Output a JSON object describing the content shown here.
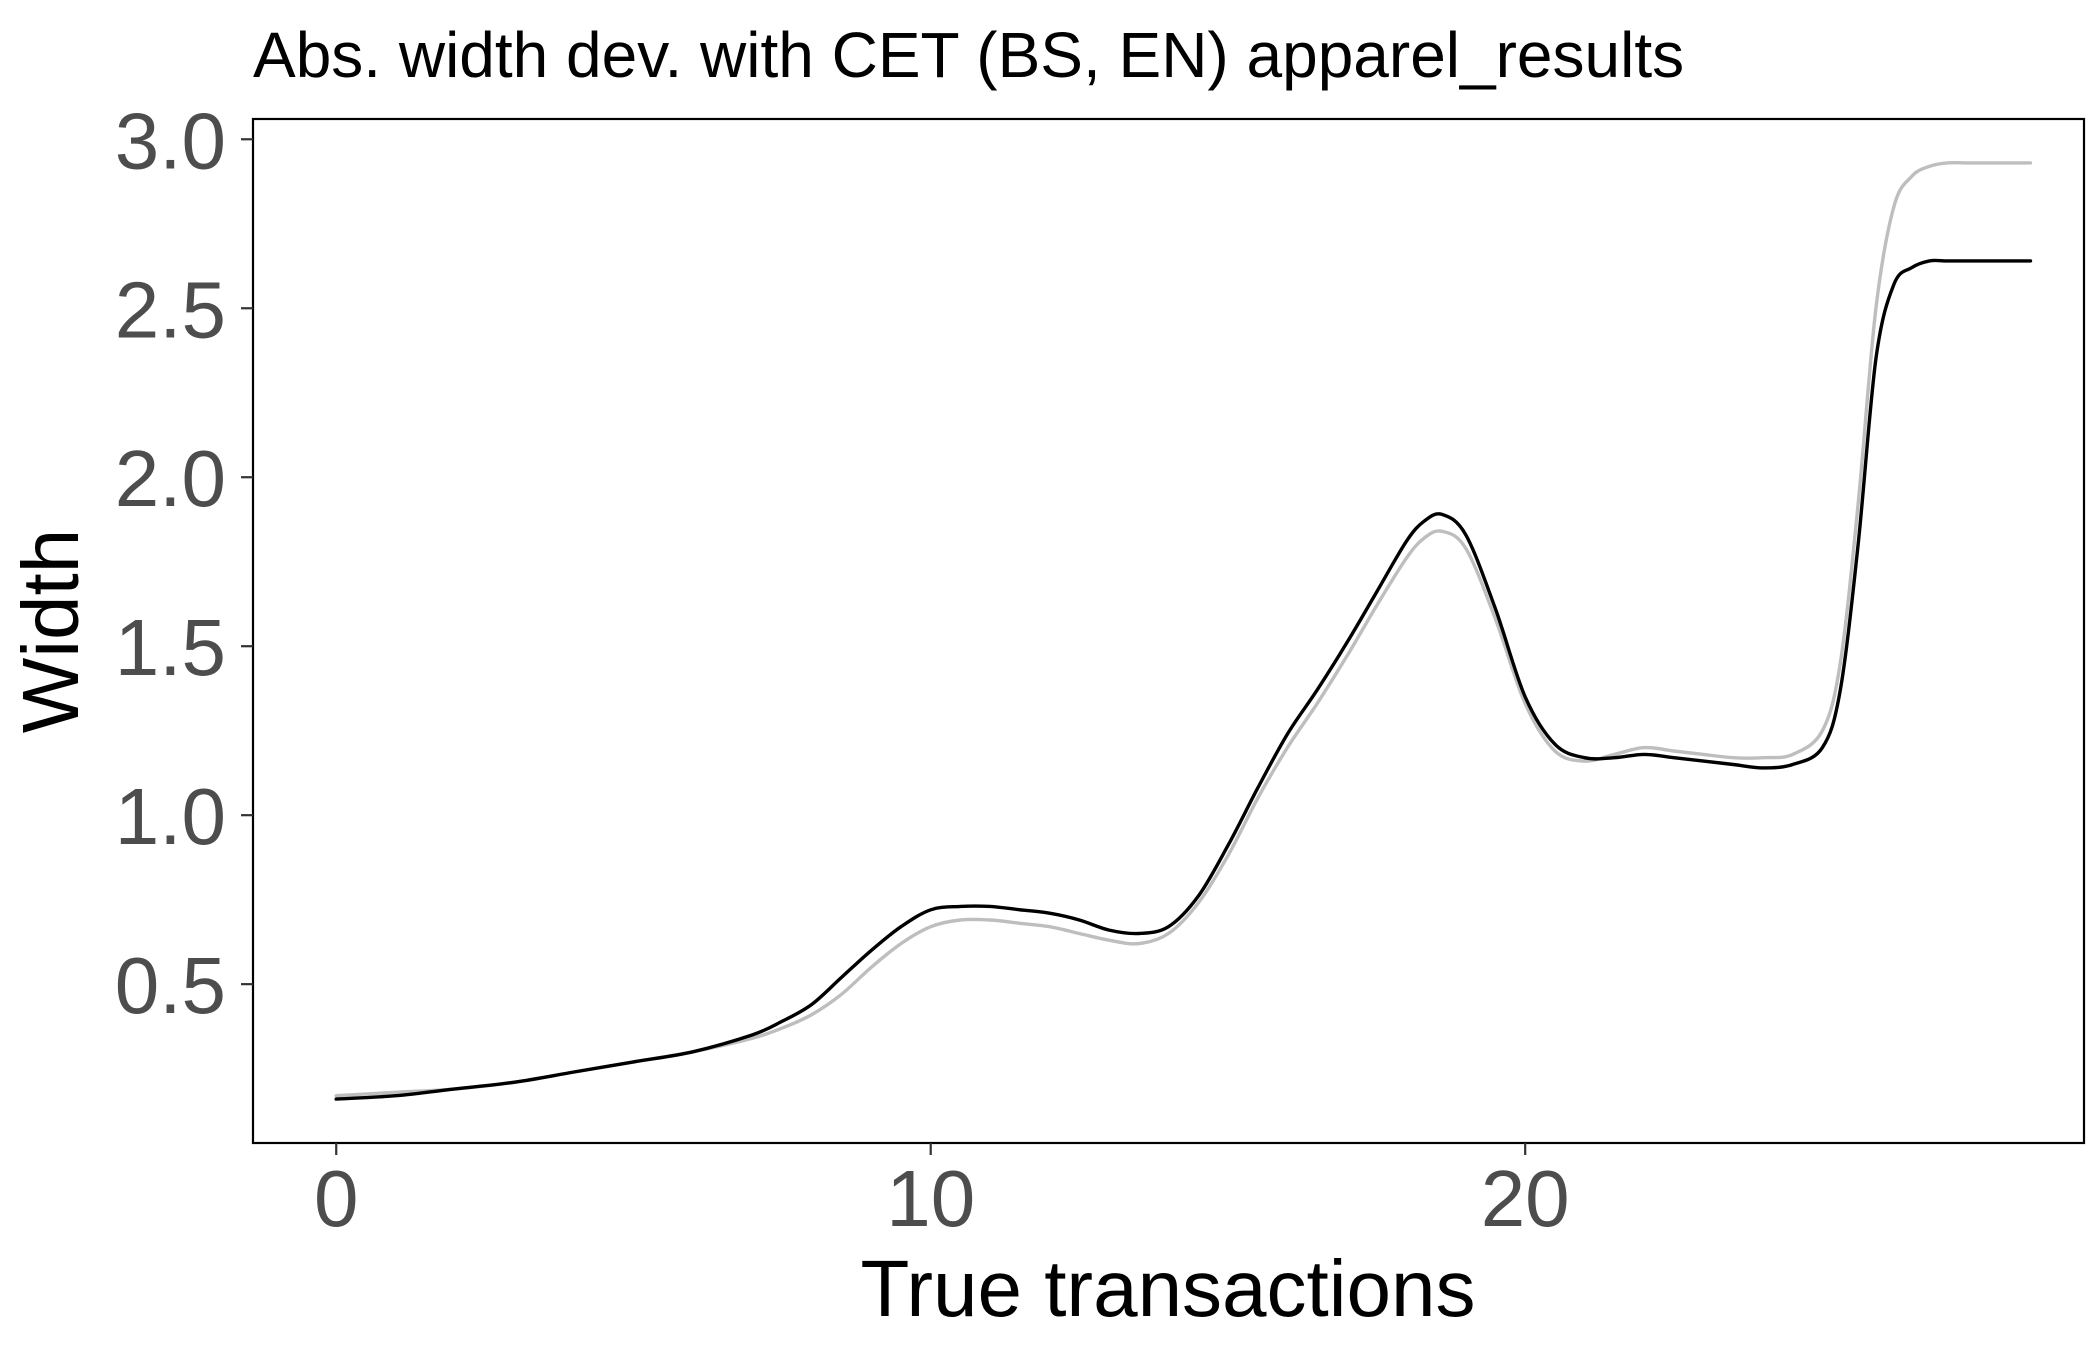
{
  "chart_data": {
    "type": "line",
    "title": "Abs. width dev. with CET (BS, EN) apparel_results",
    "xlabel": "True transactions",
    "ylabel": "Width",
    "xlim": [
      -1.4,
      29.4
    ],
    "ylim": [
      0.03,
      3.06
    ],
    "x_ticks": [
      0,
      10,
      20
    ],
    "x_tick_labels": [
      "0",
      "10",
      "20"
    ],
    "y_ticks": [
      0.5,
      1.0,
      1.5,
      2.0,
      2.5,
      3.0
    ],
    "y_tick_labels": [
      "0.5",
      "1.0",
      "1.5",
      "2.0",
      "2.5",
      "3.0"
    ],
    "grid": false,
    "legend": "none",
    "series": [
      {
        "color": "#bebebe",
        "x": [
          0,
          1,
          2,
          3,
          4,
          5,
          6,
          7,
          7.5,
          8,
          8.5,
          9,
          9.5,
          10,
          10.5,
          11,
          11.5,
          12,
          12.5,
          13,
          13.5,
          14,
          14.5,
          15,
          15.5,
          16,
          16.5,
          17,
          17.5,
          18,
          18.3,
          18.6,
          19,
          19.5,
          20,
          20.5,
          21,
          21.5,
          22,
          22.5,
          23,
          23.5,
          24,
          24.5,
          25,
          25.3,
          25.6,
          25.9,
          26.2,
          26.5,
          26.8,
          27.1,
          27.5,
          28,
          28.5
        ],
        "y": [
          0.17,
          0.18,
          0.19,
          0.21,
          0.24,
          0.27,
          0.3,
          0.34,
          0.37,
          0.41,
          0.47,
          0.55,
          0.62,
          0.67,
          0.69,
          0.69,
          0.68,
          0.67,
          0.65,
          0.63,
          0.62,
          0.65,
          0.74,
          0.88,
          1.05,
          1.2,
          1.33,
          1.47,
          1.62,
          1.76,
          1.82,
          1.84,
          1.79,
          1.58,
          1.33,
          1.19,
          1.16,
          1.18,
          1.2,
          1.19,
          1.18,
          1.17,
          1.17,
          1.18,
          1.25,
          1.45,
          1.92,
          2.5,
          2.8,
          2.89,
          2.92,
          2.93,
          2.93,
          2.93,
          2.93
        ]
      },
      {
        "color": "#000000",
        "x": [
          0,
          1,
          2,
          3,
          4,
          5,
          6,
          7,
          7.5,
          8,
          8.5,
          9,
          9.5,
          10,
          10.5,
          11,
          11.5,
          12,
          12.5,
          13,
          13.5,
          14,
          14.5,
          15,
          15.5,
          16,
          16.5,
          17,
          17.5,
          18,
          18.3,
          18.6,
          19,
          19.5,
          20,
          20.5,
          21,
          21.5,
          22,
          22.5,
          23,
          23.5,
          24,
          24.5,
          25,
          25.3,
          25.6,
          25.9,
          26.2,
          26.5,
          26.8,
          27.1,
          27.5,
          28,
          28.5
        ],
        "y": [
          0.16,
          0.17,
          0.19,
          0.21,
          0.24,
          0.27,
          0.3,
          0.35,
          0.39,
          0.44,
          0.52,
          0.6,
          0.67,
          0.72,
          0.73,
          0.73,
          0.72,
          0.71,
          0.69,
          0.66,
          0.65,
          0.67,
          0.76,
          0.91,
          1.08,
          1.24,
          1.37,
          1.51,
          1.66,
          1.81,
          1.87,
          1.89,
          1.83,
          1.61,
          1.35,
          1.21,
          1.17,
          1.17,
          1.18,
          1.17,
          1.16,
          1.15,
          1.14,
          1.15,
          1.2,
          1.37,
          1.8,
          2.35,
          2.57,
          2.62,
          2.64,
          2.64,
          2.64,
          2.64,
          2.64
        ]
      }
    ]
  }
}
